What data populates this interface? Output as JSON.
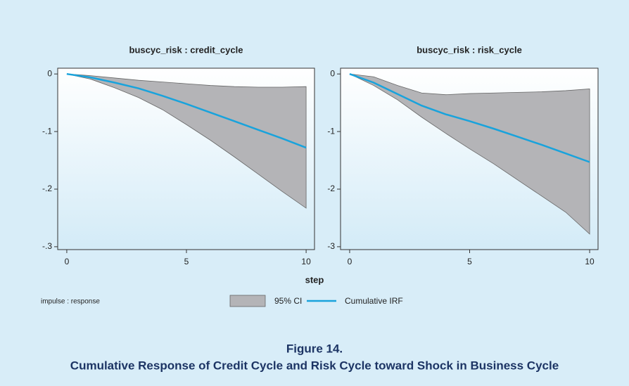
{
  "chart_data": [
    {
      "type": "line",
      "title": "buscyc_risk : credit_cycle",
      "x": [
        0,
        1,
        2,
        3,
        4,
        5,
        6,
        7,
        8,
        9,
        10
      ],
      "xlim": [
        -0.38,
        10.35
      ],
      "xticks": [
        0,
        5,
        10
      ],
      "ylim": [
        -0.305,
        0.01
      ],
      "yticks": [
        0,
        {
          "value": -0.1,
          "label": "-.1"
        },
        {
          "value": -0.2,
          "label": "-.2"
        },
        {
          "value": -0.3,
          "label": "-.3"
        }
      ],
      "series": [
        {
          "name": "95% CI",
          "color": "#b4b4b7",
          "lower": [
            0,
            -0.009,
            -0.024,
            -0.041,
            -0.062,
            -0.088,
            -0.115,
            -0.144,
            -0.174,
            -0.204,
            -0.233
          ],
          "upper": [
            0,
            -0.003,
            -0.007,
            -0.011,
            -0.014,
            -0.017,
            -0.02,
            -0.022,
            -0.023,
            -0.023,
            -0.022
          ]
        },
        {
          "name": "Cumulative IRF",
          "color": "#19a3dc",
          "values": [
            0,
            -0.006,
            -0.015,
            -0.025,
            -0.038,
            -0.052,
            -0.067,
            -0.082,
            -0.097,
            -0.112,
            -0.128
          ]
        }
      ]
    },
    {
      "type": "line",
      "title": "buscyc_risk : risk_cycle",
      "x": [
        0,
        1,
        2,
        3,
        4,
        5,
        6,
        7,
        8,
        9,
        10
      ],
      "xlim": [
        -0.38,
        10.35
      ],
      "xticks": [
        0,
        5,
        10
      ],
      "ylim": [
        -3.05,
        0.1
      ],
      "yticks": [
        0,
        -1,
        -2,
        -3
      ],
      "series": [
        {
          "color": "#b4b4b7",
          "lower": [
            0,
            -0.2,
            -0.45,
            -0.75,
            -1.03,
            -1.3,
            -1.56,
            -1.84,
            -2.12,
            -2.4,
            -2.78
          ],
          "upper": [
            0,
            -0.05,
            -0.2,
            -0.33,
            -0.36,
            -0.34,
            -0.33,
            -0.32,
            -0.31,
            -0.29,
            -0.26
          ]
        },
        {
          "color": "#19a3dc",
          "values": [
            0,
            -0.15,
            -0.35,
            -0.55,
            -0.7,
            -0.82,
            -0.95,
            -1.09,
            -1.23,
            -1.38,
            -1.53
          ]
        }
      ]
    }
  ],
  "xlabel": "step",
  "note": "impulse : response",
  "caption": {
    "number": "Figure 14.",
    "text": "Cumulative Response of Credit Cycle and Risk Cycle toward Shock in Business Cycle"
  }
}
